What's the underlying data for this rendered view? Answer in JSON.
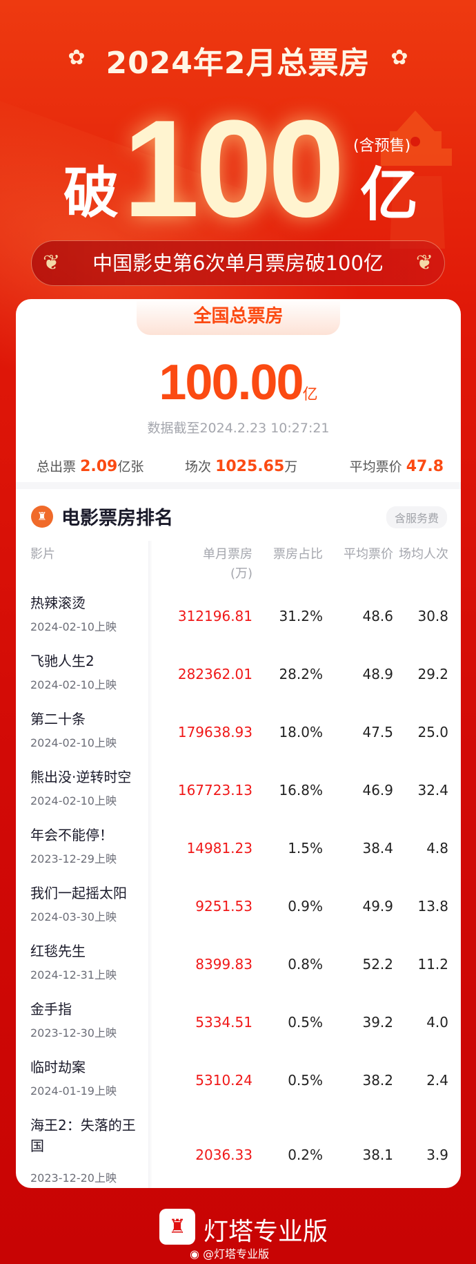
{
  "header": {
    "title": "2024年2月总票房",
    "prefix": "破",
    "amount": "100",
    "unit": "亿",
    "presale_note": "(含预售)",
    "banner": "中国影史第6次单月票房破100亿"
  },
  "summary": {
    "tab_label": "全国总票房",
    "total_value": "100.00",
    "total_unit": "亿",
    "timestamp": "数据截至2024.2.23 10:27:21",
    "tickets_label": "总出票",
    "tickets_value": "2.09",
    "tickets_unit": "亿张",
    "shows_label": "场次",
    "shows_value": "1025.65",
    "shows_unit": "万",
    "avg_price_label": "平均票价",
    "avg_price_value": "47.8"
  },
  "ranking": {
    "title": "电影票房排名",
    "service_fee_badge": "含服务费",
    "columns": {
      "film": "影片",
      "box_office": "单月票房",
      "box_office_unit": "(万)",
      "share": "票房占比",
      "avg_price": "平均票价",
      "avg_per_show": "场均人次"
    },
    "rows": [
      {
        "title": "热辣滚烫",
        "release": "2024-02-10上映",
        "box_office": "312196.81",
        "share": "31.2%",
        "avg_price": "48.6",
        "per_show": "30.8"
      },
      {
        "title": "飞驰人生2",
        "release": "2024-02-10上映",
        "box_office": "282362.01",
        "share": "28.2%",
        "avg_price": "48.9",
        "per_show": "29.2"
      },
      {
        "title": "第二十条",
        "release": "2024-02-10上映",
        "box_office": "179638.93",
        "share": "18.0%",
        "avg_price": "47.5",
        "per_show": "25.0"
      },
      {
        "title": "熊出没·逆转时空",
        "release": "2024-02-10上映",
        "box_office": "167723.13",
        "share": "16.8%",
        "avg_price": "46.9",
        "per_show": "32.4"
      },
      {
        "title": "年会不能停！",
        "release": "2023-12-29上映",
        "box_office": "14981.23",
        "share": "1.5%",
        "avg_price": "38.4",
        "per_show": "4.8"
      },
      {
        "title": "我们一起摇太阳",
        "release": "2024-03-30上映",
        "box_office": "9251.53",
        "share": "0.9%",
        "avg_price": "49.9",
        "per_show": "13.8"
      },
      {
        "title": "红毯先生",
        "release": "2024-12-31上映",
        "box_office": "8399.83",
        "share": "0.8%",
        "avg_price": "52.2",
        "per_show": "11.2"
      },
      {
        "title": "金手指",
        "release": "2023-12-30上映",
        "box_office": "5334.51",
        "share": "0.5%",
        "avg_price": "39.2",
        "per_show": "4.0"
      },
      {
        "title": "临时劫案",
        "release": "2024-01-19上映",
        "box_office": "5310.24",
        "share": "0.5%",
        "avg_price": "38.2",
        "per_show": "2.4"
      },
      {
        "title": "海王2：失落的王国",
        "release": "2023-12-20上映",
        "box_office": "2036.33",
        "share": "0.2%",
        "avg_price": "38.1",
        "per_show": "3.9"
      }
    ]
  },
  "footer": {
    "brand": "灯塔专业版",
    "weibo_handle": "@灯塔专业版"
  },
  "colors": {
    "accent": "#fb4a12",
    "box_office_red": "#f01818",
    "background_red": "#d20a06"
  }
}
